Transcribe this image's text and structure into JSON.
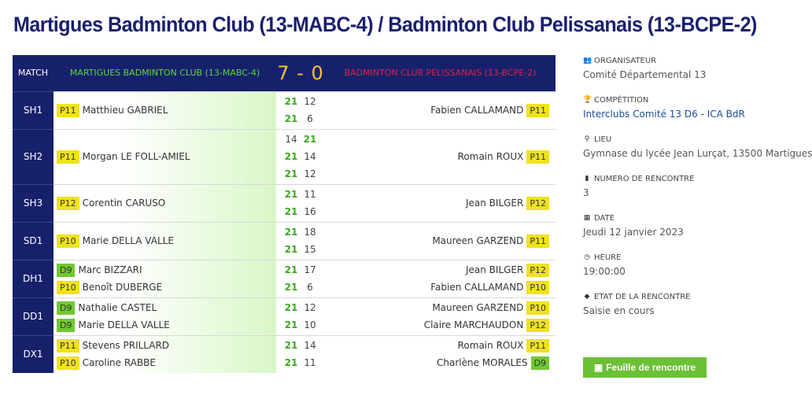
{
  "title": "Martigues Badminton Club (13-MABC-4) / Badminton Club Pelissanais (13-BCPE-2)",
  "header": {
    "match_label": "MATCH",
    "home_team": "MARTIGUES BADMINTON CLUB (13-MABC-4)",
    "score": "7 - 0",
    "away_team": "BADMINTON CLUB PELISSANAIS (13-BCPE-2)"
  },
  "matches": [
    {
      "type": "SH1",
      "home": [
        {
          "rank": "P11",
          "color": "yellow",
          "name": "Matthieu GABRIEL"
        }
      ],
      "sets": [
        [
          "21",
          "12"
        ],
        [
          "21",
          "6"
        ]
      ],
      "away": [
        {
          "rank": "P11",
          "color": "yellow",
          "name": "Fabien CALLAMAND"
        }
      ]
    },
    {
      "type": "SH2",
      "home": [
        {
          "rank": "P11",
          "color": "yellow",
          "name": "Morgan LE FOLL-AMIEL"
        }
      ],
      "sets": [
        [
          "14",
          "21"
        ],
        [
          "21",
          "14"
        ],
        [
          "21",
          "12"
        ]
      ],
      "away": [
        {
          "rank": "P11",
          "color": "yellow",
          "name": "Romain ROUX"
        }
      ]
    },
    {
      "type": "SH3",
      "home": [
        {
          "rank": "P12",
          "color": "yellow",
          "name": "Corentin CARUSO"
        }
      ],
      "sets": [
        [
          "21",
          "11"
        ],
        [
          "21",
          "16"
        ]
      ],
      "away": [
        {
          "rank": "P12",
          "color": "yellow",
          "name": "Jean BILGER"
        }
      ]
    },
    {
      "type": "SD1",
      "home": [
        {
          "rank": "P10",
          "color": "yellow",
          "name": "Marie DELLA VALLE"
        }
      ],
      "sets": [
        [
          "21",
          "18"
        ],
        [
          "21",
          "15"
        ]
      ],
      "away": [
        {
          "rank": "P11",
          "color": "yellow",
          "name": "Maureen GARZEND"
        }
      ]
    },
    {
      "type": "DH1",
      "home": [
        {
          "rank": "D9",
          "color": "green",
          "name": "Marc BIZZARI"
        },
        {
          "rank": "P10",
          "color": "yellow",
          "name": "Benoît DUBERGE"
        }
      ],
      "sets": [
        [
          "21",
          "17"
        ],
        [
          "21",
          "6"
        ]
      ],
      "away": [
        {
          "rank": "P12",
          "color": "yellow",
          "name": "Jean BILGER"
        },
        {
          "rank": "P10",
          "color": "yellow",
          "name": "Fabien CALLAMAND"
        }
      ]
    },
    {
      "type": "DD1",
      "home": [
        {
          "rank": "D9",
          "color": "green",
          "name": "Nathalie CASTEL"
        },
        {
          "rank": "D9",
          "color": "green",
          "name": "Marie DELLA VALLE"
        }
      ],
      "sets": [
        [
          "21",
          "12"
        ],
        [
          "21",
          "10"
        ]
      ],
      "away": [
        {
          "rank": "P10",
          "color": "yellow",
          "name": "Maureen GARZEND"
        },
        {
          "rank": "P12",
          "color": "yellow",
          "name": "Claire MARCHAUDON"
        }
      ]
    },
    {
      "type": "DX1",
      "home": [
        {
          "rank": "P11",
          "color": "yellow",
          "name": "Stevens PRILLARD"
        },
        {
          "rank": "P10",
          "color": "yellow",
          "name": "Caroline RABBE"
        }
      ],
      "sets": [
        [
          "21",
          "14"
        ],
        [
          "21",
          "11"
        ]
      ],
      "away": [
        {
          "rank": "P11",
          "color": "yellow",
          "name": "Romain ROUX"
        },
        {
          "rank": "D9",
          "color": "green",
          "name": "Charlène MORALES"
        }
      ]
    }
  ],
  "info": [
    {
      "icon": "users-icon",
      "glyph": "👥",
      "label": "ORGANISATEUR",
      "value": "Comité Départemental 13",
      "link": false
    },
    {
      "icon": "trophy-icon",
      "glyph": "🏆",
      "label": "COMPÉTITION",
      "value": "Interclubs Comité 13 D6 - ICA BdR",
      "link": true
    },
    {
      "icon": "map-marker-icon",
      "glyph": "⚲",
      "label": "LIEU",
      "value": "Gymnase du lycée Jean Lurçat, 13500 Martigues",
      "link": false
    },
    {
      "icon": "bookmark-icon",
      "glyph": "▮",
      "label": "NUMERO DE RENCONTRE",
      "value": "3",
      "link": false
    },
    {
      "icon": "calendar-icon",
      "glyph": "▦",
      "label": "DATE",
      "value": "Jeudi 12 janvier 2023",
      "link": false
    },
    {
      "icon": "clock-icon",
      "glyph": "◷",
      "label": "HEURE",
      "value": "19:00:00",
      "link": false
    },
    {
      "icon": "tag-icon",
      "glyph": "◆",
      "label": "ETAT DE LA RENCONTRE",
      "value": "Saisie en cours",
      "link": false
    }
  ],
  "button": {
    "label": "Feuille de rencontre",
    "icon": "pdf-icon"
  },
  "colors": {
    "navy": "#17216b",
    "home": "#5ed63a",
    "score": "#f5c233",
    "away": "#d9224b",
    "badge_yellow": "#f0e21c",
    "badge_green": "#71c930",
    "button": "#6cc035"
  }
}
